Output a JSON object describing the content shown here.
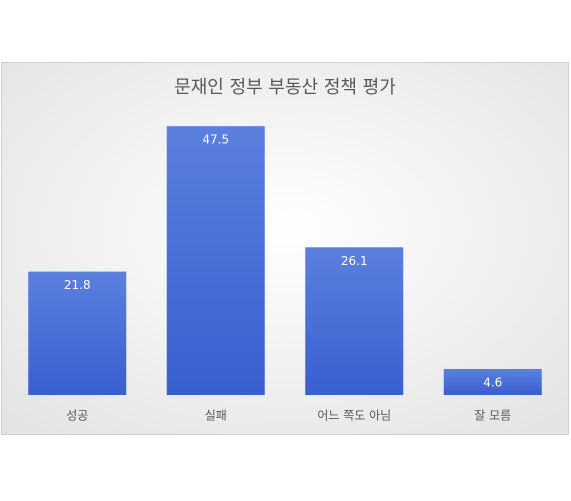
{
  "chart_data": {
    "type": "bar",
    "title": "문재인 정부 부동산 정책 평가",
    "categories": [
      "성공",
      "실패",
      "어느 쪽도 아님",
      "잘 모름"
    ],
    "values": [
      21.8,
      47.5,
      26.1,
      4.6
    ],
    "color": "#4a6fd6",
    "ylim": [
      0,
      50
    ]
  }
}
